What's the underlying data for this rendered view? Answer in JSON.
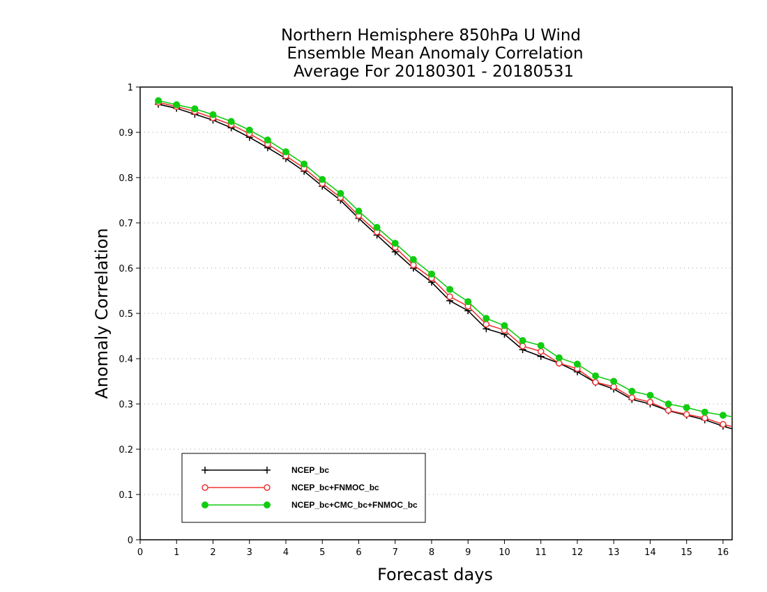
{
  "chart_data": {
    "type": "line",
    "title": [
      "Northern Hemisphere 850hPa U Wind",
      "Ensemble Mean Anomaly Correlation",
      "Average For 20180301 - 20180531"
    ],
    "xlabel": "Forecast days",
    "ylabel": "Anomaly Correlation",
    "xlim": [
      0,
      16.25
    ],
    "ylim": [
      0,
      1
    ],
    "xticks": [
      0,
      1,
      2,
      3,
      4,
      5,
      6,
      7,
      8,
      9,
      10,
      11,
      12,
      13,
      14,
      15,
      16
    ],
    "yticks": [
      0,
      0.1,
      0.2,
      0.3,
      0.4,
      0.5,
      0.6,
      0.7,
      0.8,
      0.9,
      1
    ],
    "ytick_labels": [
      "0",
      "0.1",
      "0.2",
      "0.3",
      "0.4",
      "0.5",
      "0.6",
      "0.7",
      "0.8",
      "0.9",
      "1"
    ],
    "grid": "horizontal dotted",
    "legend_position": "lower-left",
    "x": [
      0.5,
      1,
      1.5,
      2,
      2.5,
      3,
      3.5,
      4,
      4.5,
      5,
      5.5,
      6,
      6.5,
      7,
      7.5,
      8,
      8.5,
      9,
      9.5,
      10,
      10.5,
      11,
      11.5,
      12,
      12.5,
      13,
      13.5,
      14,
      14.5,
      15,
      15.5,
      16,
      16.25
    ],
    "series": [
      {
        "name": "NCEP_bc",
        "color": "#000000",
        "marker": "plus",
        "values": [
          0.962,
          0.953,
          0.94,
          0.927,
          0.91,
          0.889,
          0.866,
          0.842,
          0.814,
          0.781,
          0.75,
          0.71,
          0.673,
          0.636,
          0.6,
          0.569,
          0.528,
          0.506,
          0.466,
          0.454,
          0.42,
          0.405,
          0.39,
          0.371,
          0.347,
          0.333,
          0.31,
          0.3,
          0.285,
          0.275,
          0.265,
          0.251,
          0.245
        ]
      },
      {
        "name": "NCEP_bc+FNMOC_bc",
        "color": "#ee3333",
        "marker": "open-circle",
        "values": [
          0.966,
          0.957,
          0.946,
          0.932,
          0.917,
          0.897,
          0.874,
          0.848,
          0.821,
          0.787,
          0.756,
          0.716,
          0.68,
          0.646,
          0.607,
          0.578,
          0.537,
          0.516,
          0.476,
          0.463,
          0.428,
          0.416,
          0.39,
          0.378,
          0.348,
          0.338,
          0.314,
          0.304,
          0.286,
          0.277,
          0.269,
          0.255,
          0.25
        ]
      },
      {
        "name": "NCEP_bc+CMC_bc+FNMOC_bc",
        "color": "#11cc11",
        "marker": "filled-circle",
        "values": [
          0.97,
          0.961,
          0.952,
          0.939,
          0.924,
          0.905,
          0.883,
          0.857,
          0.83,
          0.796,
          0.765,
          0.726,
          0.69,
          0.655,
          0.619,
          0.587,
          0.553,
          0.526,
          0.489,
          0.473,
          0.44,
          0.429,
          0.402,
          0.388,
          0.362,
          0.35,
          0.328,
          0.319,
          0.3,
          0.292,
          0.282,
          0.275,
          0.272
        ]
      }
    ]
  }
}
